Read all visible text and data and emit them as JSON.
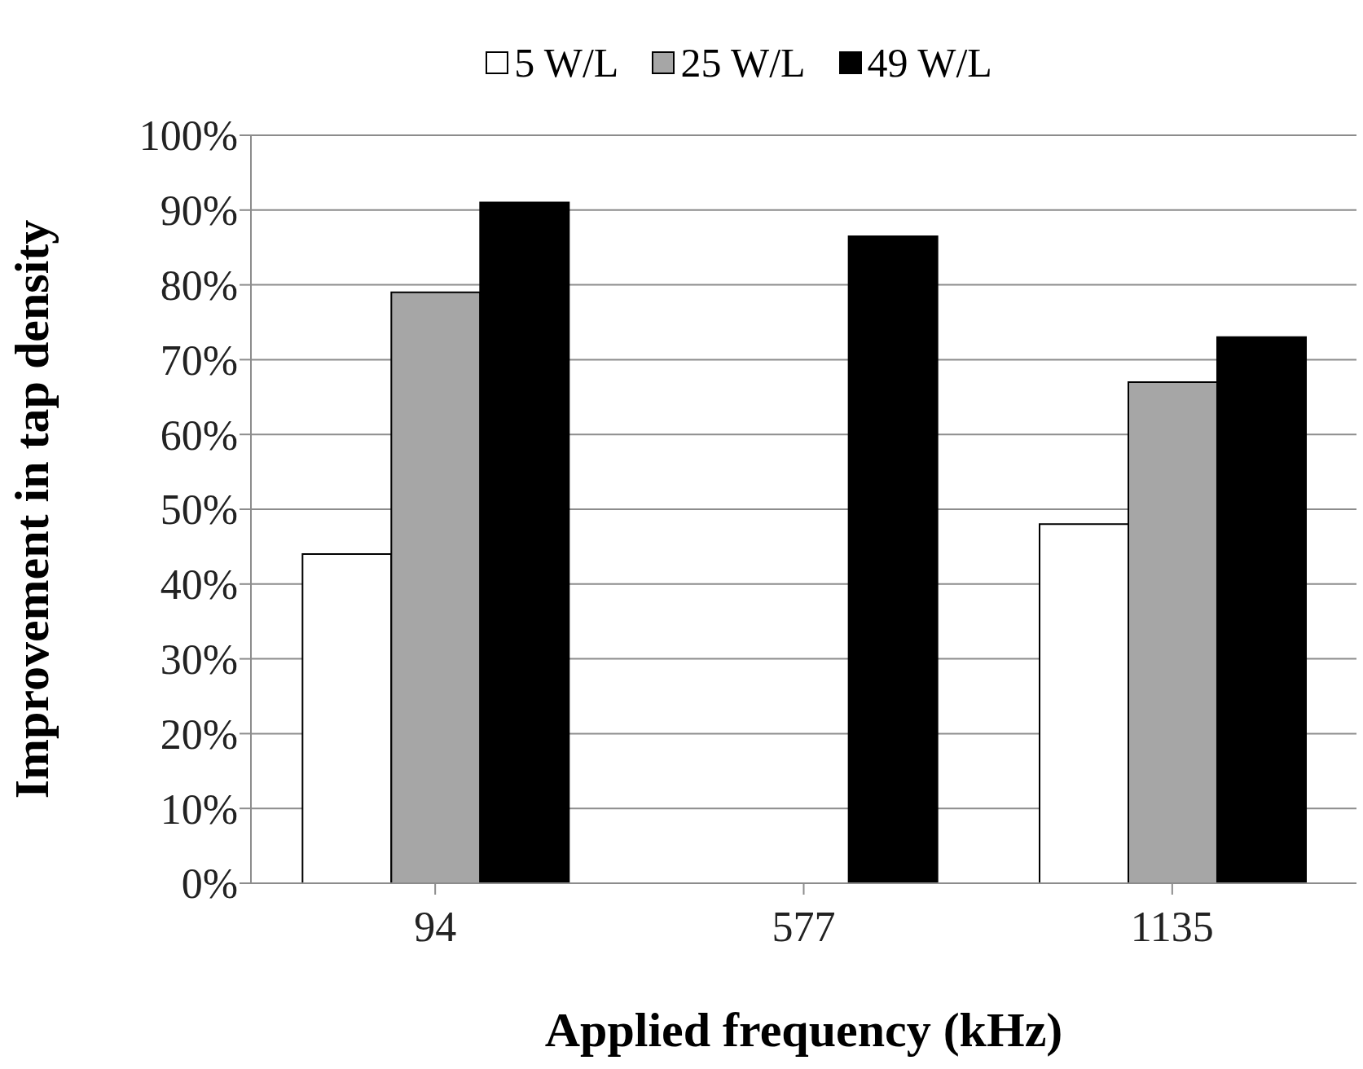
{
  "chart_data": {
    "type": "bar",
    "xlabel": "Applied frequency (kHz)",
    "ylabel": "Improvement in tap density",
    "categories": [
      "94",
      "577",
      "1135"
    ],
    "series": [
      {
        "name": "5 W/L",
        "color": "#ffffff",
        "values": [
          44,
          null,
          48
        ]
      },
      {
        "name": "25 W/L",
        "color": "#a6a6a6",
        "values": [
          79,
          null,
          67
        ]
      },
      {
        "name": "49 W/L",
        "color": "#000000",
        "values": [
          91,
          86.5,
          73
        ]
      }
    ],
    "ylim": [
      0,
      100
    ],
    "yticks": [
      {
        "value": 0,
        "label": "0%"
      },
      {
        "value": 10,
        "label": "10%"
      },
      {
        "value": 20,
        "label": "20%"
      },
      {
        "value": 30,
        "label": "30%"
      },
      {
        "value": 40,
        "label": "40%"
      },
      {
        "value": 50,
        "label": "50%"
      },
      {
        "value": 60,
        "label": "60%"
      },
      {
        "value": 70,
        "label": "70%"
      },
      {
        "value": 80,
        "label": "80%"
      },
      {
        "value": 90,
        "label": "90%"
      },
      {
        "value": 100,
        "label": "100%"
      }
    ],
    "grid": "y",
    "legend": "top"
  }
}
